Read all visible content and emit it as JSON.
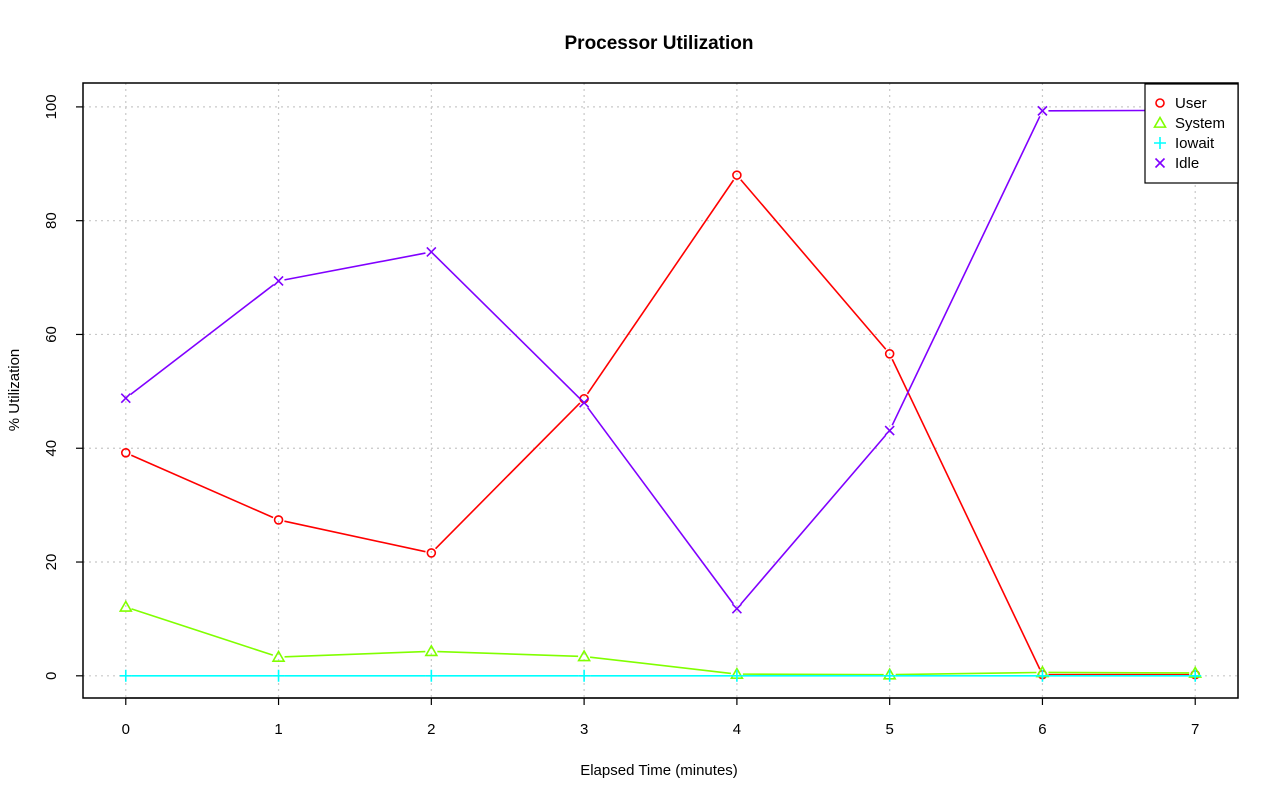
{
  "chart_data": {
    "type": "line",
    "title": "Processor Utilization",
    "xlabel": "Elapsed Time (minutes)",
    "ylabel": "% Utilization",
    "x": [
      0,
      1,
      2,
      3,
      4,
      5,
      6,
      7
    ],
    "xlim": [
      -0.28,
      7.28
    ],
    "ylim": [
      -3.9,
      104.2
    ],
    "xticks": [
      0,
      1,
      2,
      3,
      4,
      5,
      6,
      7
    ],
    "yticks": [
      0,
      20,
      40,
      60,
      80,
      100
    ],
    "grid": true,
    "legend_position": "top-right",
    "series": [
      {
        "name": "User",
        "color": "#ff0000",
        "marker": "circle",
        "values": [
          39.2,
          27.4,
          21.6,
          48.7,
          88.0,
          56.6,
          0.2,
          0.2
        ]
      },
      {
        "name": "System",
        "color": "#80ff00",
        "marker": "triangle",
        "values": [
          12.1,
          3.3,
          4.3,
          3.4,
          0.3,
          0.2,
          0.6,
          0.5
        ]
      },
      {
        "name": "Iowait",
        "color": "#00ffff",
        "marker": "plus",
        "values": [
          0.0,
          0.0,
          0.0,
          0.0,
          0.0,
          0.0,
          0.0,
          0.0
        ]
      },
      {
        "name": "Idle",
        "color": "#8000ff",
        "marker": "cross",
        "values": [
          48.8,
          69.4,
          74.5,
          48.0,
          11.8,
          43.1,
          99.3,
          99.4
        ]
      }
    ]
  }
}
